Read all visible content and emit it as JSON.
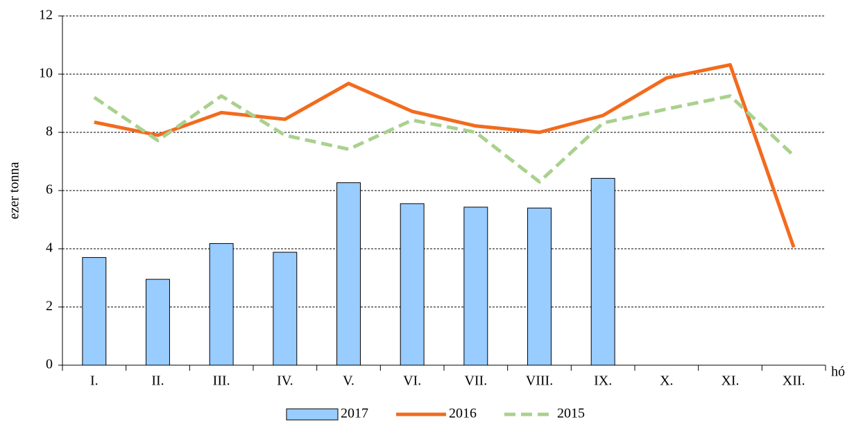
{
  "chart_data": {
    "type": "bar",
    "y_label": "ezer tonna",
    "x_label": "hó",
    "categories": [
      "I.",
      "II.",
      "III.",
      "IV.",
      "V.",
      "VI.",
      "VII.",
      "VIII.",
      "IX.",
      "X.",
      "XI.",
      "XII."
    ],
    "series": [
      {
        "name": "2017",
        "type": "bar",
        "color": "#99ccff",
        "values": [
          3.7,
          2.95,
          4.18,
          3.88,
          6.27,
          5.55,
          5.43,
          5.4,
          6.42,
          null,
          null,
          null
        ]
      },
      {
        "name": "2016",
        "type": "line",
        "color": "#f26b1d",
        "values": [
          8.35,
          7.9,
          8.68,
          8.45,
          9.68,
          8.72,
          8.22,
          8.0,
          8.58,
          9.87,
          10.32,
          4.05
        ]
      },
      {
        "name": "2015",
        "type": "line",
        "dashed": true,
        "color": "#a9d18e",
        "values": [
          9.2,
          7.72,
          9.25,
          7.9,
          7.42,
          8.42,
          8.0,
          6.3,
          8.32,
          8.8,
          9.25,
          7.2
        ]
      }
    ],
    "ylim": [
      0,
      12
    ],
    "yticks": [
      0,
      2,
      4,
      6,
      8,
      10,
      12
    ],
    "grid": true,
    "legend": "bottom"
  }
}
